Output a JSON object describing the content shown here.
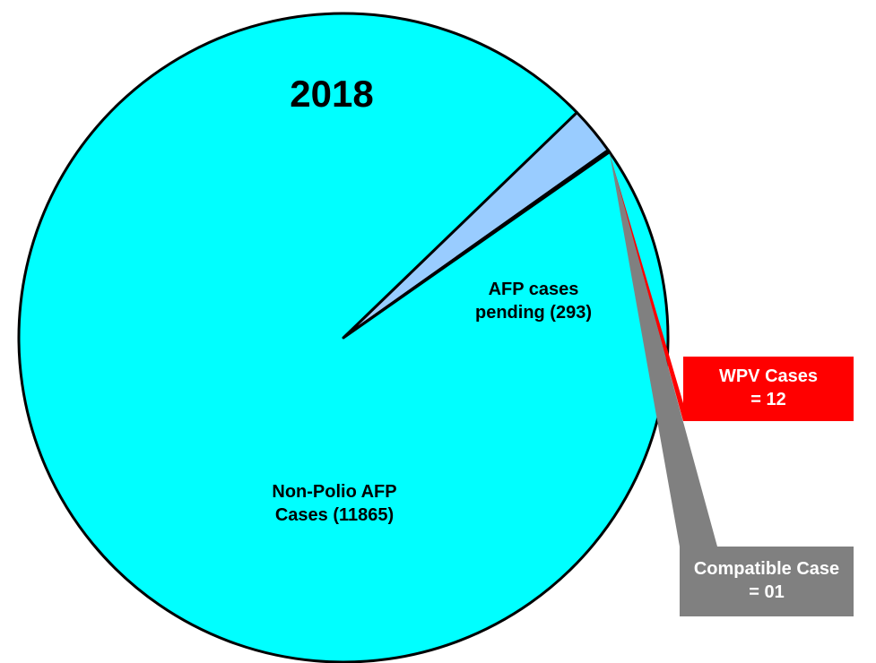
{
  "chart_data": {
    "type": "pie",
    "title": "2018",
    "categories": [
      "AFP cases pending (293)",
      "WPV Cases = 12",
      "Compatible Case = 01",
      "Non-Polio AFP Cases (11865)"
    ],
    "values": [
      293,
      12,
      1,
      11865
    ],
    "colors": [
      "#99ccff",
      "#ff0000",
      "#222222",
      "#00ffff"
    ]
  }
}
